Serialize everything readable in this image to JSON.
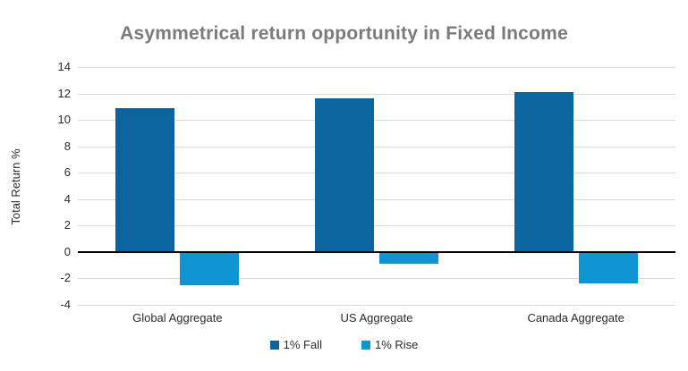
{
  "title": "Asymmetrical return opportunity in Fixed Income",
  "chart_data": {
    "type": "bar",
    "title": "Asymmetrical return opportunity in Fixed Income",
    "categories": [
      "Global Aggregate",
      "US Aggregate",
      "Canada Aggregate"
    ],
    "series": [
      {
        "name": "1% Fall",
        "color": "#0b649d",
        "values": [
          10.9,
          11.6,
          12.1
        ]
      },
      {
        "name": "1% Rise",
        "color": "#0f96d2",
        "values": [
          -2.5,
          -0.9,
          -2.4
        ]
      }
    ],
    "xlabel": "",
    "ylabel": "Total Return %",
    "ylim": [
      -4,
      14
    ],
    "ytick_step": 2,
    "grid": true,
    "legend_position": "bottom"
  },
  "styles": {
    "title_color": "#7b7b7b",
    "axis_text_color": "#2b2b2b",
    "gridline_color": "#d9d9d9",
    "zero_line_color": "#000000",
    "background_color": "#ffffff"
  }
}
